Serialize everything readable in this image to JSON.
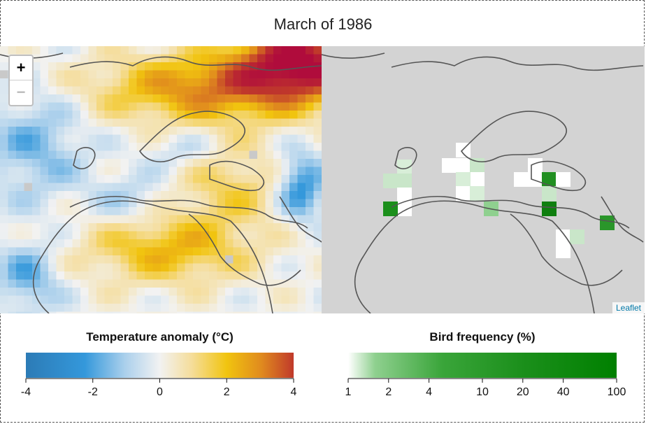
{
  "title": "March of 1986",
  "zoom": {
    "in_label": "+",
    "out_label": "−"
  },
  "attribution": "Leaflet",
  "legends": {
    "temperature": {
      "title": "Temperature anomaly (°C)",
      "ticks": [
        "-4",
        "-2",
        "0",
        "2",
        "4"
      ],
      "colors": [
        "#2c7bb6",
        "#3498db",
        "#f2f2f2",
        "#f1c40f",
        "#c0392b"
      ]
    },
    "bird": {
      "title": "Bird frequency (%)",
      "ticks": [
        "1",
        "2",
        "4",
        "10",
        "20",
        "40",
        "100"
      ],
      "colors": [
        "#ffffff",
        "#3aa53a",
        "#008000"
      ]
    }
  }
}
